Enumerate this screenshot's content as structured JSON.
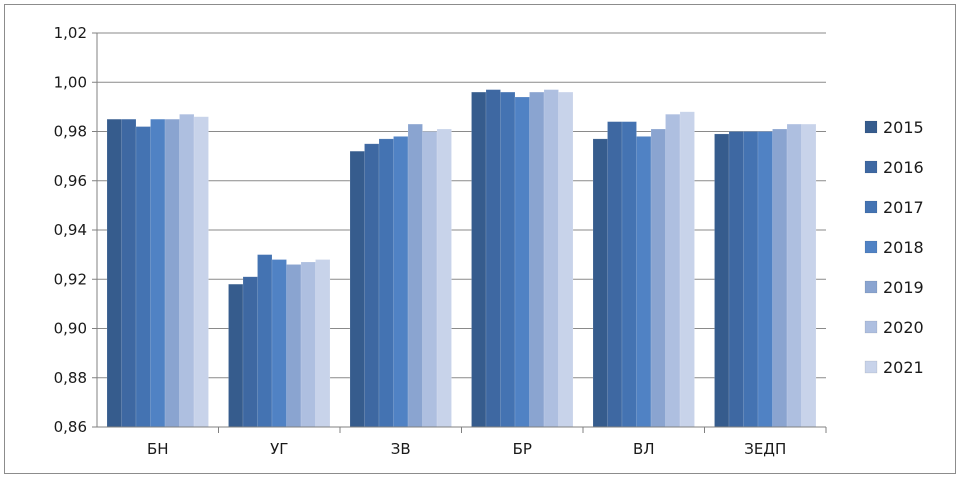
{
  "chart_data": {
    "type": "bar",
    "title": "",
    "xlabel": "",
    "ylabel": "",
    "categories": [
      "БН",
      "УГ",
      "ЗВ",
      "БР",
      "ВЛ",
      "ЗЕДП"
    ],
    "ylim": [
      0.86,
      1.02
    ],
    "yticks": [
      {
        "value": 0.86,
        "label": "0,86"
      },
      {
        "value": 0.88,
        "label": "0,88"
      },
      {
        "value": 0.9,
        "label": "0,90"
      },
      {
        "value": 0.92,
        "label": "0,92"
      },
      {
        "value": 0.94,
        "label": "0,94"
      },
      {
        "value": 0.96,
        "label": "0,96"
      },
      {
        "value": 0.98,
        "label": "0,98"
      },
      {
        "value": 1.0,
        "label": "1,00"
      },
      {
        "value": 1.02,
        "label": "1,02"
      }
    ],
    "grid": true,
    "legend_position": "right",
    "plot_background": "#ffffff",
    "series": [
      {
        "name": "2015",
        "color": "#365c8d",
        "values": [
          0.985,
          0.918,
          0.972,
          0.996,
          0.977,
          0.979
        ]
      },
      {
        "name": "2016",
        "color": "#3e68a2",
        "values": [
          0.985,
          0.921,
          0.975,
          0.997,
          0.984,
          0.98
        ]
      },
      {
        "name": "2017",
        "color": "#4473b2",
        "values": [
          0.982,
          0.93,
          0.977,
          0.996,
          0.984,
          0.98
        ]
      },
      {
        "name": "2018",
        "color": "#5082c4",
        "values": [
          0.985,
          0.928,
          0.978,
          0.994,
          0.978,
          0.98
        ]
      },
      {
        "name": "2019",
        "color": "#8aa4d0",
        "values": [
          0.985,
          0.926,
          0.983,
          0.996,
          0.981,
          0.981
        ]
      },
      {
        "name": "2020",
        "color": "#aebfe0",
        "values": [
          0.987,
          0.927,
          0.98,
          0.997,
          0.987,
          0.983
        ]
      },
      {
        "name": "2021",
        "color": "#c8d3ea",
        "values": [
          0.986,
          0.928,
          0.981,
          0.996,
          0.988,
          0.983
        ]
      }
    ]
  }
}
